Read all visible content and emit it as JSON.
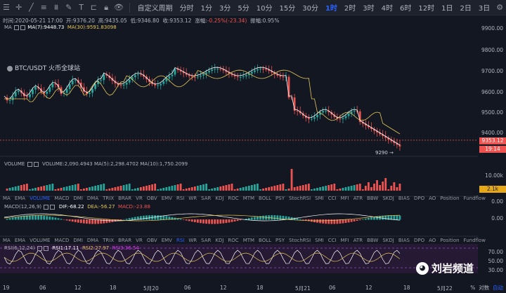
{
  "toolbar": {
    "custom_period_label": "自定义周期",
    "intervals": [
      "分时",
      "1分",
      "3分",
      "5分",
      "10分",
      "15分",
      "30分",
      "1时",
      "2时",
      "3时",
      "4时",
      "6时",
      "12时",
      "1日",
      "2日",
      "3日"
    ],
    "active_interval": "1时"
  },
  "info": {
    "time": "时间:2020-05-21 17:00",
    "open": "开:9376.20",
    "high": "高:9435.05",
    "low": "低:9346.80",
    "close": "收:9353.12",
    "change_label": "涨幅:",
    "change_value": "-0.25%(-23.34)",
    "amplitude": "振幅:0.95%"
  },
  "symbol": "BTC/USDT 火币全球站",
  "legends": {
    "ma": "MA",
    "ma7": "MA(7):9448.73",
    "ma30": "MA(30):9591.83098",
    "volume": "VOLUME",
    "volume_values": "VOLUME:2,090.4943  MA(5):2,298.4702  MA(10):1,750.2099",
    "macd": "MACD(12,26,9)",
    "macd_values_dif": "DIF:-68.22",
    "macd_values_dea": "DEA:-56.27",
    "macd_values_macd": "MACD:-23.88",
    "rsi": "RSI(6,12,24)",
    "rsi1": "RSI1:17.11",
    "rsi2": "RSI2:27.97",
    "rsi3": "RSI3:36.54"
  },
  "indicator_tabs_1": [
    "MA",
    "EMA",
    "VOLUME",
    "MACD",
    "DMI",
    "DMA",
    "TRIX",
    "BRAR",
    "VR",
    "OBV",
    "EMV",
    "RSI",
    "WR",
    "SAR",
    "KDJ",
    "ROC",
    "MTM",
    "BOLL",
    "PSY",
    "StochRSI",
    "SMI",
    "CCI",
    "MFI",
    "ATR",
    "BBW",
    "SKDJ",
    "BIAS",
    "DPO",
    "AO",
    "Position",
    "Fundflow"
  ],
  "indicator_tabs_2": [
    "MA",
    "EMA",
    "VOLUME",
    "MACD",
    "DMI",
    "DMA",
    "TRIX",
    "BRAR",
    "VR",
    "OBV",
    "EMV",
    "RSI",
    "WR",
    "SAR",
    "KDJ",
    "ROC",
    "MTM",
    "BOLL",
    "PSY",
    "StochRSI",
    "SMI",
    "CCI",
    "MFI",
    "ATR",
    "BBW",
    "SKDJ",
    "BIAS",
    "DPO",
    "AO",
    "Position",
    "Fundflow"
  ],
  "active_tab_1": "VOLUME",
  "active_tab_2": "RSI",
  "price_axis": [
    "9900.00",
    "9800.00",
    "9700.00",
    "9600.00",
    "9500.00",
    "9400.00"
  ],
  "current_price": "9353.12",
  "countdown": "19:14",
  "low_marker": "9290",
  "volume_axis": [
    "10.00k",
    "0.00"
  ],
  "volume_tag": "2.1k",
  "macd_axis": [
    "0.00"
  ],
  "rsi_axis": [
    "70.00",
    "50.00",
    "30.00"
  ],
  "time_axis": [
    "19",
    "06",
    "12",
    "18",
    "5月20",
    "06",
    "12",
    "18",
    "5月21",
    "06",
    "12",
    "18",
    "5月22"
  ],
  "footer": {
    "percent": "%",
    "log": "对数",
    "auto": "自动"
  },
  "watermark": "刘岩频道",
  "colors": {
    "up": "#26a69a",
    "down": "#ef5350",
    "ma7": "#ffffff",
    "ma30": "#e6c75a",
    "accent": "#2962ff"
  }
}
